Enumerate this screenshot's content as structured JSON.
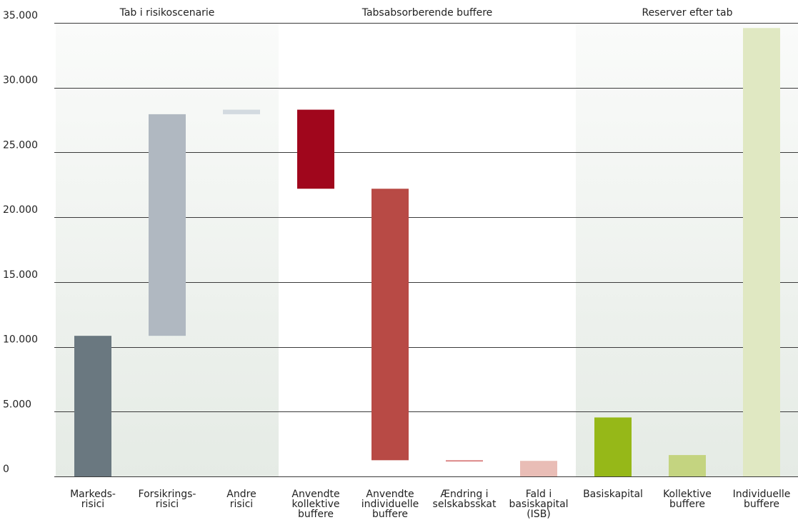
{
  "chart_data": {
    "type": "bar",
    "subtype": "waterfall",
    "title": "",
    "xlabel": "",
    "ylabel": "",
    "ylim": [
      0,
      35000
    ],
    "y_ticks": [
      {
        "value": 0,
        "label": "0"
      },
      {
        "value": 5000,
        "label": "5.000"
      },
      {
        "value": 10000,
        "label": "10.000"
      },
      {
        "value": 15000,
        "label": "15.000"
      },
      {
        "value": 20000,
        "label": "20.000"
      },
      {
        "value": 25000,
        "label": "25.000"
      },
      {
        "value": 30000,
        "label": "30.000"
      },
      {
        "value": 35000,
        "label": "35.000"
      }
    ],
    "grid": true,
    "groups": [
      {
        "label": "Tab i risikoscenarie",
        "first": 0,
        "last": 2,
        "shaded": true
      },
      {
        "label": "Tabsabsorberende buffere",
        "first": 3,
        "last": 6,
        "shaded": false
      },
      {
        "label": "Reserver efter tab",
        "first": 7,
        "last": 9,
        "shaded": true
      }
    ],
    "categories": [
      [
        "Markeds-",
        "risici"
      ],
      [
        "Forsikrings-",
        "risici"
      ],
      [
        "Andre",
        "risici"
      ],
      [
        "Anvendte",
        "kollektive",
        "buffere"
      ],
      [
        "Anvendte",
        "individuelle",
        "buffere"
      ],
      [
        "Ændring i",
        "selskabsskat"
      ],
      [
        "Fald i",
        "basiskapital",
        "(ISB)"
      ],
      [
        "Basiskapital"
      ],
      [
        "Kollektive",
        "buffere"
      ],
      [
        "Individuelle",
        "buffere"
      ]
    ],
    "bars": [
      {
        "low": 0,
        "high": 10850,
        "color": "#6a7880"
      },
      {
        "low": 10850,
        "high": 27950,
        "color": "#b0b8c1"
      },
      {
        "low": 27950,
        "high": 28300,
        "color": "#d3dae0"
      },
      {
        "low": 22200,
        "high": 28300,
        "color": "#a0061c"
      },
      {
        "low": 1250,
        "high": 22200,
        "color": "#b84a45"
      },
      {
        "low": 1150,
        "high": 1250,
        "color": "#d97d7d"
      },
      {
        "low": 0,
        "high": 1200,
        "color": "#e9bdb6"
      },
      {
        "low": 0,
        "high": 4550,
        "color": "#96b818"
      },
      {
        "low": 0,
        "high": 1650,
        "color": "#c4d480"
      },
      {
        "low": 0,
        "high": 34600,
        "color": "#e0e8c2"
      }
    ],
    "shade_color_top": "#fafbfa",
    "shade_color_bottom": "#e5ebe5"
  }
}
